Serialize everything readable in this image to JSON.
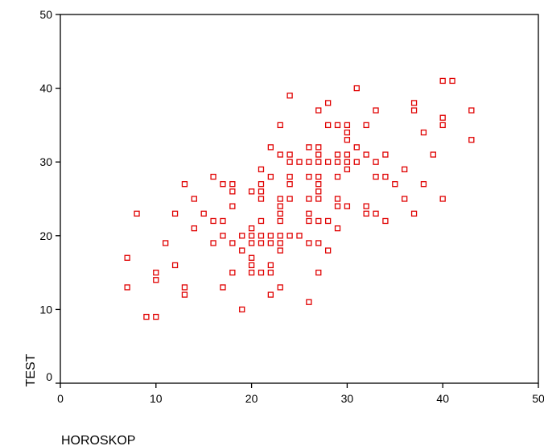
{
  "chart_data": {
    "type": "scatter",
    "xlabel": "HOROSKOP",
    "ylabel": "TEST",
    "xlim": [
      0,
      50
    ],
    "ylim": [
      0,
      50
    ],
    "x_ticks": [
      0,
      10,
      20,
      30,
      40,
      50
    ],
    "y_ticks": [
      0,
      10,
      20,
      30,
      40,
      50
    ],
    "grid": false,
    "marker": "hollow-square",
    "marker_color": "#e00000",
    "points": [
      [
        7,
        17
      ],
      [
        7,
        13
      ],
      [
        8,
        23
      ],
      [
        9,
        9
      ],
      [
        10,
        9
      ],
      [
        10,
        15
      ],
      [
        10,
        14
      ],
      [
        11,
        19
      ],
      [
        12,
        23
      ],
      [
        12,
        16
      ],
      [
        13,
        27
      ],
      [
        13,
        13
      ],
      [
        13,
        12
      ],
      [
        14,
        25
      ],
      [
        14,
        21
      ],
      [
        15,
        23
      ],
      [
        16,
        28
      ],
      [
        16,
        22
      ],
      [
        16,
        19
      ],
      [
        17,
        27
      ],
      [
        17,
        22
      ],
      [
        17,
        20
      ],
      [
        17,
        13
      ],
      [
        18,
        27
      ],
      [
        18,
        26
      ],
      [
        18,
        24
      ],
      [
        18,
        19
      ],
      [
        18,
        15
      ],
      [
        19,
        20
      ],
      [
        19,
        18
      ],
      [
        19,
        10
      ],
      [
        20,
        26
      ],
      [
        20,
        21
      ],
      [
        20,
        20
      ],
      [
        20,
        19
      ],
      [
        20,
        17
      ],
      [
        20,
        16
      ],
      [
        20,
        15
      ],
      [
        21,
        29
      ],
      [
        21,
        27
      ],
      [
        21,
        26
      ],
      [
        21,
        25
      ],
      [
        21,
        22
      ],
      [
        21,
        20
      ],
      [
        21,
        19
      ],
      [
        21,
        15
      ],
      [
        22,
        32
      ],
      [
        22,
        28
      ],
      [
        22,
        20
      ],
      [
        22,
        19
      ],
      [
        22,
        16
      ],
      [
        22,
        15
      ],
      [
        22,
        12
      ],
      [
        23,
        35
      ],
      [
        23,
        31
      ],
      [
        23,
        25
      ],
      [
        23,
        24
      ],
      [
        23,
        23
      ],
      [
        23,
        22
      ],
      [
        23,
        20
      ],
      [
        23,
        19
      ],
      [
        23,
        18
      ],
      [
        23,
        13
      ],
      [
        24,
        39
      ],
      [
        24,
        31
      ],
      [
        24,
        30
      ],
      [
        24,
        28
      ],
      [
        24,
        27
      ],
      [
        24,
        25
      ],
      [
        24,
        20
      ],
      [
        25,
        30
      ],
      [
        25,
        20
      ],
      [
        26,
        32
      ],
      [
        26,
        30
      ],
      [
        26,
        28
      ],
      [
        26,
        25
      ],
      [
        26,
        23
      ],
      [
        26,
        22
      ],
      [
        26,
        19
      ],
      [
        26,
        11
      ],
      [
        27,
        37
      ],
      [
        27,
        32
      ],
      [
        27,
        31
      ],
      [
        27,
        30
      ],
      [
        27,
        28
      ],
      [
        27,
        27
      ],
      [
        27,
        26
      ],
      [
        27,
        25
      ],
      [
        27,
        22
      ],
      [
        27,
        19
      ],
      [
        27,
        15
      ],
      [
        28,
        38
      ],
      [
        28,
        35
      ],
      [
        28,
        30
      ],
      [
        28,
        22
      ],
      [
        28,
        18
      ],
      [
        29,
        35
      ],
      [
        29,
        31
      ],
      [
        29,
        30
      ],
      [
        29,
        28
      ],
      [
        29,
        25
      ],
      [
        29,
        24
      ],
      [
        29,
        21
      ],
      [
        30,
        35
      ],
      [
        30,
        34
      ],
      [
        30,
        33
      ],
      [
        30,
        31
      ],
      [
        30,
        30
      ],
      [
        30,
        29
      ],
      [
        30,
        24
      ],
      [
        31,
        40
      ],
      [
        31,
        32
      ],
      [
        31,
        30
      ],
      [
        32,
        35
      ],
      [
        32,
        31
      ],
      [
        32,
        24
      ],
      [
        32,
        23
      ],
      [
        33,
        37
      ],
      [
        33,
        30
      ],
      [
        33,
        28
      ],
      [
        33,
        23
      ],
      [
        34,
        31
      ],
      [
        34,
        28
      ],
      [
        34,
        22
      ],
      [
        35,
        27
      ],
      [
        36,
        29
      ],
      [
        36,
        25
      ],
      [
        37,
        38
      ],
      [
        37,
        37
      ],
      [
        37,
        23
      ],
      [
        38,
        34
      ],
      [
        38,
        27
      ],
      [
        39,
        31
      ],
      [
        40,
        41
      ],
      [
        40,
        36
      ],
      [
        40,
        35
      ],
      [
        40,
        25
      ],
      [
        41,
        41
      ],
      [
        43,
        37
      ],
      [
        43,
        33
      ]
    ]
  }
}
